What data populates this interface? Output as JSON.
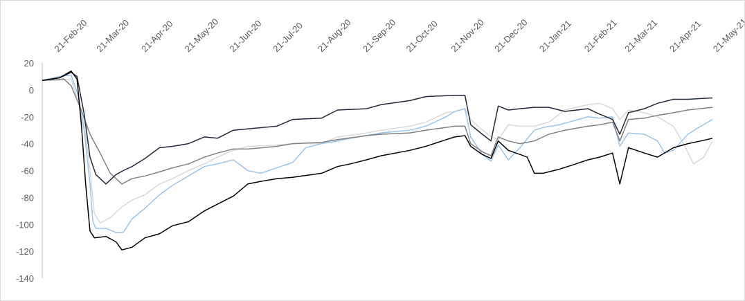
{
  "chart_data": {
    "type": "line",
    "title": "",
    "xlabel": "",
    "ylabel": "",
    "x_range": [
      "2020-02-10",
      "2021-05-18"
    ],
    "ylim": [
      -140,
      20
    ],
    "y_ticks": [
      20,
      0,
      -20,
      -40,
      -60,
      -80,
      -100,
      -120,
      -140
    ],
    "x_tick_dates": [
      "2020-02-21",
      "2020-03-21",
      "2020-04-21",
      "2020-05-21",
      "2020-06-21",
      "2020-07-21",
      "2020-08-21",
      "2020-09-21",
      "2020-10-21",
      "2020-11-21",
      "2020-12-21",
      "2021-01-21",
      "2021-02-21",
      "2021-03-21",
      "2021-04-21",
      "2021-05-21"
    ],
    "x_tick_labels": [
      "21-Feb-20",
      "21-Mar-20",
      "21-Apr-20",
      "21-May-20",
      "21-Jun-20",
      "21-Jul-20",
      "21-Aug-20",
      "21-Sep-20",
      "21-Oct-20",
      "21-Nov-20",
      "21-Dec-20",
      "21-Jan-21",
      "21-Feb-21",
      "21-Mar-21",
      "21-Apr-21",
      "21-May-21"
    ],
    "grid": false,
    "legend": "none",
    "series": [
      {
        "color": "#d9d9d9",
        "points": [
          [
            "2020-02-10",
            7
          ],
          [
            "2020-02-20",
            7
          ],
          [
            "2020-03-01",
            8
          ],
          [
            "2020-03-05",
            -6
          ],
          [
            "2020-03-10",
            -25
          ],
          [
            "2020-03-14",
            -60
          ],
          [
            "2020-03-17",
            -92
          ],
          [
            "2020-03-21",
            -99
          ],
          [
            "2020-03-28",
            -95
          ],
          [
            "2020-04-05",
            -87
          ],
          [
            "2020-04-12",
            -82
          ],
          [
            "2020-04-21",
            -78
          ],
          [
            "2020-05-01",
            -70
          ],
          [
            "2020-05-10",
            -66
          ],
          [
            "2020-05-21",
            -60
          ],
          [
            "2020-06-01",
            -55
          ],
          [
            "2020-06-10",
            -50
          ],
          [
            "2020-06-21",
            -45
          ],
          [
            "2020-07-01",
            -42
          ],
          [
            "2020-07-21",
            -41
          ],
          [
            "2020-08-01",
            -40
          ],
          [
            "2020-08-21",
            -40
          ],
          [
            "2020-09-01",
            -35
          ],
          [
            "2020-09-21",
            -32
          ],
          [
            "2020-10-01",
            -30
          ],
          [
            "2020-10-21",
            -27
          ],
          [
            "2020-11-01",
            -24
          ],
          [
            "2020-11-15",
            -17
          ],
          [
            "2020-11-21",
            -16
          ],
          [
            "2020-11-28",
            -14
          ],
          [
            "2020-12-02",
            -22
          ],
          [
            "2020-12-08",
            -28
          ],
          [
            "2020-12-15",
            -34
          ],
          [
            "2020-12-21",
            -37
          ],
          [
            "2020-12-28",
            -26
          ],
          [
            "2021-01-05",
            -27
          ],
          [
            "2021-01-15",
            -27
          ],
          [
            "2021-01-25",
            -24
          ],
          [
            "2021-02-05",
            -15
          ],
          [
            "2021-02-21",
            -11
          ],
          [
            "2021-03-01",
            -10
          ],
          [
            "2021-03-10",
            -14
          ],
          [
            "2021-03-15",
            -22
          ],
          [
            "2021-03-21",
            -15
          ],
          [
            "2021-04-01",
            -17
          ],
          [
            "2021-04-10",
            -20
          ],
          [
            "2021-04-21",
            -27
          ],
          [
            "2021-04-28",
            -40
          ],
          [
            "2021-05-05",
            -55
          ],
          [
            "2021-05-12",
            -50
          ],
          [
            "2021-05-18",
            -38
          ]
        ]
      },
      {
        "color": "#9dc3e6",
        "points": [
          [
            "2020-02-10",
            7
          ],
          [
            "2020-02-22",
            10
          ],
          [
            "2020-03-01",
            11
          ],
          [
            "2020-03-06",
            -5
          ],
          [
            "2020-03-10",
            -30
          ],
          [
            "2020-03-14",
            -70
          ],
          [
            "2020-03-16",
            -98
          ],
          [
            "2020-03-18",
            -103
          ],
          [
            "2020-03-25",
            -103
          ],
          [
            "2020-04-01",
            -106
          ],
          [
            "2020-04-06",
            -106
          ],
          [
            "2020-04-12",
            -96
          ],
          [
            "2020-04-21",
            -88
          ],
          [
            "2020-05-01",
            -78
          ],
          [
            "2020-05-10",
            -71
          ],
          [
            "2020-05-21",
            -64
          ],
          [
            "2020-06-01",
            -57
          ],
          [
            "2020-06-10",
            -55
          ],
          [
            "2020-06-21",
            -52
          ],
          [
            "2020-07-01",
            -60
          ],
          [
            "2020-07-10",
            -62
          ],
          [
            "2020-07-21",
            -58
          ],
          [
            "2020-08-01",
            -54
          ],
          [
            "2020-08-10",
            -43
          ],
          [
            "2020-08-21",
            -40
          ],
          [
            "2020-09-01",
            -38
          ],
          [
            "2020-09-10",
            -36
          ],
          [
            "2020-09-21",
            -34
          ],
          [
            "2020-10-01",
            -32
          ],
          [
            "2020-10-21",
            -30
          ],
          [
            "2020-11-01",
            -27
          ],
          [
            "2020-11-15",
            -20
          ],
          [
            "2020-11-21",
            -16
          ],
          [
            "2020-11-28",
            -14
          ],
          [
            "2020-12-02",
            -35
          ],
          [
            "2020-12-10",
            -48
          ],
          [
            "2020-12-16",
            -53
          ],
          [
            "2020-12-21",
            -41
          ],
          [
            "2020-12-28",
            -52
          ],
          [
            "2021-01-05",
            -43
          ],
          [
            "2021-01-15",
            -30
          ],
          [
            "2021-01-21",
            -28
          ],
          [
            "2021-02-01",
            -26
          ],
          [
            "2021-02-21",
            -20
          ],
          [
            "2021-03-01",
            -21
          ],
          [
            "2021-03-10",
            -20
          ],
          [
            "2021-03-15",
            -42
          ],
          [
            "2021-03-21",
            -32
          ],
          [
            "2021-04-01",
            -33
          ],
          [
            "2021-04-10",
            -38
          ],
          [
            "2021-04-15",
            -47
          ],
          [
            "2021-04-21",
            -45
          ],
          [
            "2021-05-01",
            -33
          ],
          [
            "2021-05-10",
            -27
          ],
          [
            "2021-05-18",
            -22
          ]
        ]
      },
      {
        "color": "#808080",
        "points": [
          [
            "2020-02-10",
            7
          ],
          [
            "2020-02-25",
            8
          ],
          [
            "2020-03-01",
            3
          ],
          [
            "2020-03-08",
            -15
          ],
          [
            "2020-03-14",
            -33
          ],
          [
            "2020-03-21",
            -47
          ],
          [
            "2020-03-28",
            -62
          ],
          [
            "2020-04-05",
            -70
          ],
          [
            "2020-04-12",
            -66
          ],
          [
            "2020-04-21",
            -64
          ],
          [
            "2020-05-01",
            -61
          ],
          [
            "2020-05-10",
            -58
          ],
          [
            "2020-05-21",
            -55
          ],
          [
            "2020-06-01",
            -50
          ],
          [
            "2020-06-10",
            -47
          ],
          [
            "2020-06-21",
            -44
          ],
          [
            "2020-07-01",
            -44
          ],
          [
            "2020-07-21",
            -42
          ],
          [
            "2020-08-01",
            -40
          ],
          [
            "2020-08-21",
            -39
          ],
          [
            "2020-09-01",
            -37
          ],
          [
            "2020-09-21",
            -34
          ],
          [
            "2020-10-01",
            -33
          ],
          [
            "2020-10-21",
            -32
          ],
          [
            "2020-11-01",
            -30
          ],
          [
            "2020-11-21",
            -27
          ],
          [
            "2020-11-28",
            -27
          ],
          [
            "2020-12-02",
            -40
          ],
          [
            "2020-12-10",
            -46
          ],
          [
            "2020-12-16",
            -49
          ],
          [
            "2020-12-21",
            -35
          ],
          [
            "2020-12-28",
            -38
          ],
          [
            "2021-01-05",
            -40
          ],
          [
            "2021-01-15",
            -38
          ],
          [
            "2021-01-25",
            -33
          ],
          [
            "2021-02-05",
            -30
          ],
          [
            "2021-02-21",
            -27
          ],
          [
            "2021-03-01",
            -26
          ],
          [
            "2021-03-10",
            -24
          ],
          [
            "2021-03-15",
            -38
          ],
          [
            "2021-03-21",
            -22
          ],
          [
            "2021-04-01",
            -21
          ],
          [
            "2021-04-10",
            -19
          ],
          [
            "2021-04-21",
            -17
          ],
          [
            "2021-05-01",
            -15
          ],
          [
            "2021-05-18",
            -13
          ]
        ]
      },
      {
        "color": "#1f2937",
        "points": [
          [
            "2020-02-10",
            7
          ],
          [
            "2020-02-22",
            9
          ],
          [
            "2020-03-01",
            13
          ],
          [
            "2020-03-05",
            10
          ],
          [
            "2020-03-10",
            -18
          ],
          [
            "2020-03-14",
            -50
          ],
          [
            "2020-03-18",
            -63
          ],
          [
            "2020-03-25",
            -70
          ],
          [
            "2020-04-01",
            -63
          ],
          [
            "2020-04-06",
            -60
          ],
          [
            "2020-04-12",
            -57
          ],
          [
            "2020-04-21",
            -51
          ],
          [
            "2020-05-01",
            -43
          ],
          [
            "2020-05-10",
            -42
          ],
          [
            "2020-05-21",
            -40
          ],
          [
            "2020-06-01",
            -35
          ],
          [
            "2020-06-10",
            -36
          ],
          [
            "2020-06-21",
            -30
          ],
          [
            "2020-07-01",
            -29
          ],
          [
            "2020-07-21",
            -27
          ],
          [
            "2020-08-01",
            -22
          ],
          [
            "2020-08-21",
            -21
          ],
          [
            "2020-09-01",
            -15
          ],
          [
            "2020-09-21",
            -14
          ],
          [
            "2020-10-01",
            -11
          ],
          [
            "2020-10-21",
            -8
          ],
          [
            "2020-11-01",
            -5
          ],
          [
            "2020-11-21",
            -4
          ],
          [
            "2020-11-28",
            -4
          ],
          [
            "2020-12-02",
            -26
          ],
          [
            "2020-12-10",
            -33
          ],
          [
            "2020-12-16",
            -38
          ],
          [
            "2020-12-21",
            -12
          ],
          [
            "2020-12-28",
            -15
          ],
          [
            "2021-01-05",
            -14
          ],
          [
            "2021-01-15",
            -13
          ],
          [
            "2021-01-25",
            -13
          ],
          [
            "2021-02-05",
            -16
          ],
          [
            "2021-02-21",
            -14
          ],
          [
            "2021-03-01",
            -18
          ],
          [
            "2021-03-10",
            -22
          ],
          [
            "2021-03-15",
            -33
          ],
          [
            "2021-03-21",
            -17
          ],
          [
            "2021-04-01",
            -14
          ],
          [
            "2021-04-10",
            -10
          ],
          [
            "2021-04-21",
            -7
          ],
          [
            "2021-05-01",
            -7
          ],
          [
            "2021-05-18",
            -6
          ]
        ]
      },
      {
        "color": "#000000",
        "points": [
          [
            "2020-02-10",
            7
          ],
          [
            "2020-02-22",
            9
          ],
          [
            "2020-03-01",
            14
          ],
          [
            "2020-03-05",
            8
          ],
          [
            "2020-03-08",
            -25
          ],
          [
            "2020-03-11",
            -70
          ],
          [
            "2020-03-14",
            -105
          ],
          [
            "2020-03-17",
            -110
          ],
          [
            "2020-03-25",
            -109
          ],
          [
            "2020-04-01",
            -113
          ],
          [
            "2020-04-05",
            -119
          ],
          [
            "2020-04-12",
            -117
          ],
          [
            "2020-04-21",
            -110
          ],
          [
            "2020-05-01",
            -107
          ],
          [
            "2020-05-10",
            -101
          ],
          [
            "2020-05-21",
            -98
          ],
          [
            "2020-06-01",
            -90
          ],
          [
            "2020-06-10",
            -85
          ],
          [
            "2020-06-21",
            -79
          ],
          [
            "2020-07-01",
            -70
          ],
          [
            "2020-07-10",
            -68
          ],
          [
            "2020-07-21",
            -66
          ],
          [
            "2020-08-01",
            -65
          ],
          [
            "2020-08-21",
            -62
          ],
          [
            "2020-09-01",
            -57
          ],
          [
            "2020-09-10",
            -55
          ],
          [
            "2020-09-21",
            -52
          ],
          [
            "2020-10-01",
            -49
          ],
          [
            "2020-10-21",
            -45
          ],
          [
            "2020-11-01",
            -42
          ],
          [
            "2020-11-15",
            -37
          ],
          [
            "2020-11-21",
            -35
          ],
          [
            "2020-11-28",
            -34
          ],
          [
            "2020-12-02",
            -42
          ],
          [
            "2020-12-10",
            -48
          ],
          [
            "2020-12-16",
            -51
          ],
          [
            "2020-12-21",
            -38
          ],
          [
            "2020-12-28",
            -45
          ],
          [
            "2021-01-05",
            -48
          ],
          [
            "2021-01-10",
            -50
          ],
          [
            "2021-01-15",
            -62
          ],
          [
            "2021-01-21",
            -62
          ],
          [
            "2021-02-01",
            -59
          ],
          [
            "2021-02-10",
            -56
          ],
          [
            "2021-02-21",
            -52
          ],
          [
            "2021-03-01",
            -50
          ],
          [
            "2021-03-10",
            -47
          ],
          [
            "2021-03-15",
            -70
          ],
          [
            "2021-03-21",
            -43
          ],
          [
            "2021-04-01",
            -47
          ],
          [
            "2021-04-10",
            -50
          ],
          [
            "2021-04-21",
            -43
          ],
          [
            "2021-05-01",
            -40
          ],
          [
            "2021-05-10",
            -38
          ],
          [
            "2021-05-18",
            -36
          ]
        ]
      }
    ]
  }
}
